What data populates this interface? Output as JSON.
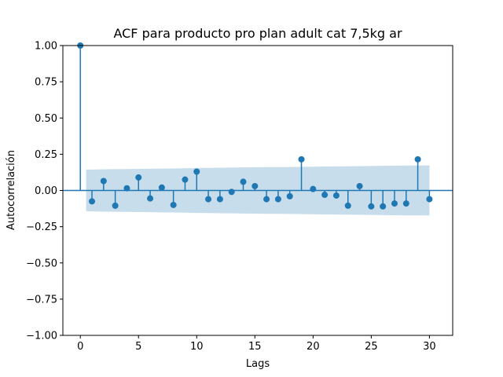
{
  "chart_data": {
    "type": "scatter",
    "subtype": "stem",
    "title": "ACF para producto pro plan adult cat 7,5kg ar",
    "xlabel": "Lags",
    "ylabel": "Autocorrelación",
    "xlim": [
      -1.5,
      32
    ],
    "ylim": [
      -1.0,
      1.0
    ],
    "xticks": [
      0,
      5,
      10,
      15,
      20,
      25,
      30
    ],
    "xtick_labels": [
      "0",
      "5",
      "10",
      "15",
      "20",
      "25",
      "30"
    ],
    "yticks": [
      -1.0,
      -0.75,
      -0.5,
      -0.25,
      0.0,
      0.25,
      0.5,
      0.75,
      1.0
    ],
    "ytick_labels": [
      "−1.00",
      "−0.75",
      "−0.50",
      "−0.25",
      "0.00",
      "0.25",
      "0.50",
      "0.75",
      "1.00"
    ],
    "grid": false,
    "lags": [
      0,
      1,
      2,
      3,
      4,
      5,
      6,
      7,
      8,
      9,
      10,
      11,
      12,
      13,
      14,
      15,
      16,
      17,
      18,
      19,
      20,
      21,
      22,
      23,
      24,
      25,
      26,
      27,
      28,
      29,
      30
    ],
    "acf": [
      1.0,
      -0.075,
      0.065,
      -0.105,
      0.015,
      0.09,
      -0.055,
      0.02,
      -0.1,
      0.075,
      0.13,
      -0.06,
      -0.06,
      -0.01,
      0.06,
      0.03,
      -0.06,
      -0.06,
      -0.04,
      0.215,
      0.01,
      -0.03,
      -0.035,
      -0.105,
      0.03,
      -0.11,
      -0.11,
      -0.09,
      -0.09,
      0.215,
      -0.06
    ],
    "confint_upper": [
      0.142,
      0.144,
      0.146,
      0.147,
      0.148,
      0.149,
      0.15,
      0.151,
      0.152,
      0.153,
      0.155,
      0.156,
      0.157,
      0.158,
      0.159,
      0.16,
      0.161,
      0.161,
      0.162,
      0.163,
      0.164,
      0.165,
      0.166,
      0.167,
      0.168,
      0.169,
      0.17,
      0.171,
      0.172,
      0.172,
      0.173
    ],
    "colors": {
      "stem": "#1f77b4",
      "confint_band": "#1f77b4",
      "confint_alpha": 0.25,
      "zero_line": "#1f77b4"
    }
  }
}
